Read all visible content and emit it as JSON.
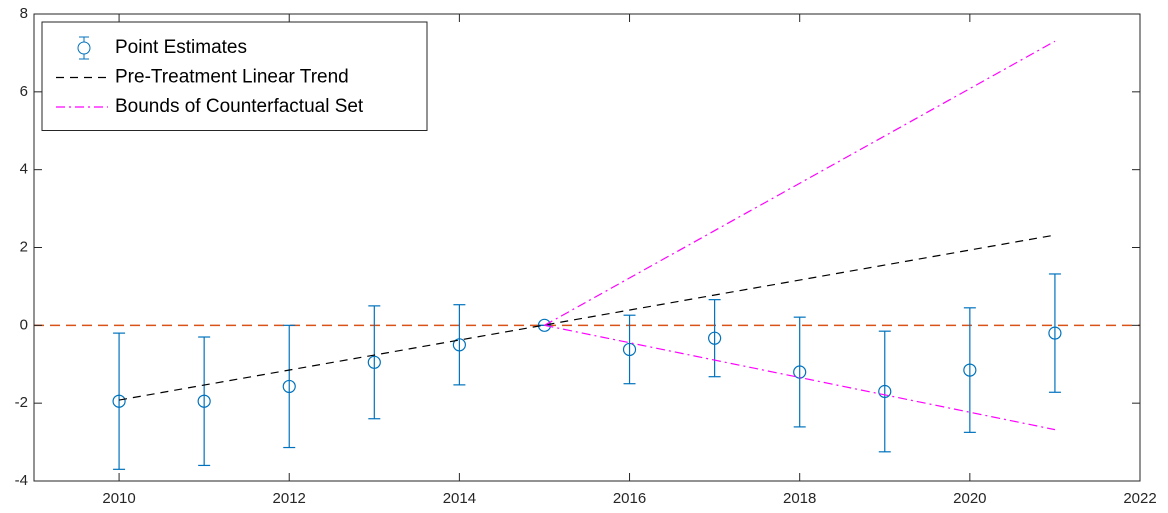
{
  "chart_data": {
    "type": "errorbar-line",
    "xlim": [
      2009,
      2022
    ],
    "xticks": [
      2010,
      2012,
      2014,
      2016,
      2018,
      2020,
      2022
    ],
    "ylim": [
      -4,
      8
    ],
    "yticks": [
      -4,
      -2,
      0,
      2,
      4,
      6,
      8
    ],
    "legend": "upper left",
    "reference_line": {
      "value": 0,
      "color": "#D95319"
    },
    "series": [
      {
        "name": "Point Estimates",
        "kind": "errorbar",
        "color": "#0072BD",
        "x": [
          2010,
          2011,
          2012,
          2013,
          2014,
          2015,
          2016,
          2017,
          2018,
          2019,
          2020,
          2021
        ],
        "values": [
          -1.95,
          -1.95,
          -1.57,
          -0.95,
          -0.5,
          0,
          -0.62,
          -0.33,
          -1.2,
          -1.7,
          -1.15,
          -0.2
        ],
        "errors": [
          1.75,
          1.65,
          1.57,
          1.45,
          1.03,
          0,
          0.88,
          0.99,
          1.41,
          1.55,
          1.6,
          1.52
        ]
      },
      {
        "name": "Pre-Treatment Linear Trend",
        "kind": "dashed",
        "color": "#000000",
        "x": [
          2010,
          2021
        ],
        "values": [
          -1.92,
          2.32
        ]
      },
      {
        "name": "Bounds of Counterfactual Set",
        "kind": "dashdot",
        "color": "#FF00FF",
        "x": [
          2015,
          2021
        ],
        "values": [
          0,
          7.3
        ]
      },
      {
        "kind": "dashdot",
        "color": "#FF00FF",
        "x": [
          2015,
          2021
        ],
        "values": [
          0,
          -2.68
        ]
      }
    ]
  }
}
